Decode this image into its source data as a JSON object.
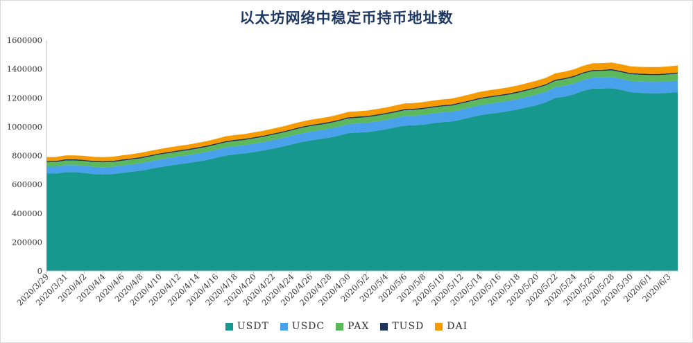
{
  "chart_data": {
    "type": "area",
    "stacked": true,
    "title": "以太坊网络中稳定币持币地址数",
    "xlabel": "",
    "ylabel": "",
    "ylim": [
      0,
      1600000
    ],
    "yticks": [
      0,
      200000,
      400000,
      600000,
      800000,
      1000000,
      1200000,
      1400000,
      1600000
    ],
    "ytick_labels": [
      "0",
      "200000",
      "400000",
      "600000",
      "800000",
      "1000000",
      "1200000",
      "1400000",
      "1600000"
    ],
    "grid": false,
    "legend_position": "bottom",
    "x": [
      "2020/3/29",
      "2020/3/30",
      "2020/3/31",
      "2020/4/1",
      "2020/4/2",
      "2020/4/3",
      "2020/4/4",
      "2020/4/5",
      "2020/4/6",
      "2020/4/7",
      "2020/4/8",
      "2020/4/9",
      "2020/4/10",
      "2020/4/11",
      "2020/4/12",
      "2020/4/13",
      "2020/4/14",
      "2020/4/15",
      "2020/4/16",
      "2020/4/17",
      "2020/4/18",
      "2020/4/19",
      "2020/4/20",
      "2020/4/21",
      "2020/4/22",
      "2020/4/23",
      "2020/4/24",
      "2020/4/25",
      "2020/4/26",
      "2020/4/27",
      "2020/4/28",
      "2020/4/29",
      "2020/4/30",
      "2020/5/1",
      "2020/5/2",
      "2020/5/3",
      "2020/5/4",
      "2020/5/5",
      "2020/5/6",
      "2020/5/7",
      "2020/5/8",
      "2020/5/9",
      "2020/5/10",
      "2020/5/11",
      "2020/5/12",
      "2020/5/13",
      "2020/5/14",
      "2020/5/15",
      "2020/5/16",
      "2020/5/17",
      "2020/5/18",
      "2020/5/19",
      "2020/5/20",
      "2020/5/21",
      "2020/5/22",
      "2020/5/23",
      "2020/5/24",
      "2020/5/25",
      "2020/5/26",
      "2020/5/27",
      "2020/5/28",
      "2020/5/29",
      "2020/5/30",
      "2020/5/31",
      "2020/6/1",
      "2020/6/2",
      "2020/6/3",
      "2020/6/4"
    ],
    "x_tick_labels": [
      "2020/3/29",
      "2020/3/31",
      "2020/4/2",
      "2020/4/4",
      "2020/4/6",
      "2020/4/8",
      "2020/4/10",
      "2020/4/12",
      "2020/4/14",
      "2020/4/16",
      "2020/4/18",
      "2020/4/20",
      "2020/4/22",
      "2020/4/24",
      "2020/4/26",
      "2020/4/28",
      "2020/4/30",
      "2020/5/2",
      "2020/5/4",
      "2020/5/6",
      "2020/5/8",
      "2020/5/10",
      "2020/5/12",
      "2020/5/14",
      "2020/5/16",
      "2020/5/18",
      "2020/5/20",
      "2020/5/22",
      "2020/5/24",
      "2020/5/26",
      "2020/5/28",
      "2020/5/30",
      "2020/6/1",
      "2020/6/3"
    ],
    "series": [
      {
        "name": "USDT",
        "color": "#17988f",
        "values": [
          675000,
          675000,
          685000,
          685000,
          680000,
          672000,
          670000,
          672000,
          680000,
          688000,
          695000,
          708000,
          720000,
          730000,
          740000,
          748000,
          758000,
          770000,
          785000,
          800000,
          808000,
          815000,
          825000,
          835000,
          848000,
          862000,
          877000,
          893000,
          905000,
          915000,
          925000,
          938000,
          955000,
          960000,
          963000,
          972000,
          982000,
          995000,
          1008000,
          1010000,
          1015000,
          1025000,
          1032000,
          1036000,
          1050000,
          1065000,
          1080000,
          1090000,
          1098000,
          1108000,
          1120000,
          1135000,
          1150000,
          1170000,
          1200000,
          1210000,
          1225000,
          1250000,
          1265000,
          1265000,
          1268000,
          1255000,
          1240000,
          1235000,
          1232000,
          1232000,
          1235000,
          1240000
        ]
      },
      {
        "name": "USDC",
        "color": "#4aa1eb",
        "values": [
          48000,
          48000,
          49000,
          49000,
          49000,
          50000,
          50000,
          50000,
          51000,
          51000,
          52000,
          52000,
          53000,
          53000,
          54000,
          54000,
          55000,
          55000,
          56000,
          56000,
          57000,
          57000,
          58000,
          58000,
          59000,
          59000,
          60000,
          60000,
          61000,
          61000,
          62000,
          62000,
          63000,
          63000,
          64000,
          64000,
          65000,
          65000,
          66000,
          66000,
          67000,
          67000,
          68000,
          68000,
          69000,
          69000,
          70000,
          70000,
          71000,
          71000,
          72000,
          72000,
          73000,
          73000,
          74000,
          74000,
          75000,
          75000,
          76000,
          76000,
          77000,
          77000,
          78000,
          78000,
          79000,
          79000,
          80000,
          80000
        ]
      },
      {
        "name": "PAX",
        "color": "#5cb85c",
        "values": [
          32000,
          32000,
          32000,
          32000,
          33000,
          33000,
          33000,
          33000,
          33000,
          33000,
          34000,
          34000,
          34000,
          34000,
          34000,
          35000,
          35000,
          35000,
          35000,
          36000,
          36000,
          36000,
          36000,
          37000,
          37000,
          37000,
          37000,
          38000,
          38000,
          38000,
          38000,
          39000,
          39000,
          39000,
          39000,
          40000,
          40000,
          40000,
          40000,
          41000,
          41000,
          41000,
          41000,
          42000,
          42000,
          42000,
          42000,
          43000,
          43000,
          43000,
          43000,
          44000,
          44000,
          44000,
          44000,
          45000,
          45000,
          45000,
          45000,
          46000,
          46000,
          46000,
          46000,
          47000,
          47000,
          47000,
          47000,
          48000
        ]
      },
      {
        "name": "TUSD",
        "color": "#1d3557",
        "values": [
          8000,
          8000,
          8000,
          8000,
          8000,
          8000,
          8000,
          8000,
          8000,
          8000,
          8000,
          8000,
          8000,
          8000,
          8000,
          8000,
          8000,
          8000,
          8000,
          8000,
          8000,
          8000,
          8000,
          8000,
          8000,
          8000,
          8000,
          8000,
          8000,
          8000,
          8000,
          8000,
          8000,
          8000,
          8000,
          8000,
          8000,
          8000,
          8000,
          8000,
          8000,
          8000,
          8000,
          8000,
          8000,
          8000,
          8000,
          8000,
          8000,
          8000,
          8000,
          8000,
          8000,
          8000,
          8000,
          8000,
          8000,
          8000,
          8000,
          8000,
          8000,
          8000,
          8000,
          8000,
          8000,
          8000,
          8000,
          8000
        ]
      },
      {
        "name": "DAI",
        "color": "#f59b00",
        "values": [
          27000,
          27000,
          27000,
          27000,
          28000,
          28000,
          28000,
          29000,
          29000,
          29000,
          30000,
          30000,
          30000,
          31000,
          31000,
          31000,
          32000,
          32000,
          32000,
          33000,
          33000,
          33000,
          34000,
          34000,
          34000,
          35000,
          35000,
          35000,
          36000,
          36000,
          36000,
          37000,
          37000,
          37000,
          38000,
          38000,
          38000,
          39000,
          39000,
          39000,
          40000,
          40000,
          40000,
          41000,
          41000,
          41000,
          42000,
          42000,
          42000,
          43000,
          43000,
          43000,
          44000,
          44000,
          44000,
          45000,
          45000,
          45000,
          46000,
          46000,
          46000,
          47000,
          47000,
          47000,
          48000,
          48000,
          48000,
          49000
        ]
      }
    ]
  }
}
